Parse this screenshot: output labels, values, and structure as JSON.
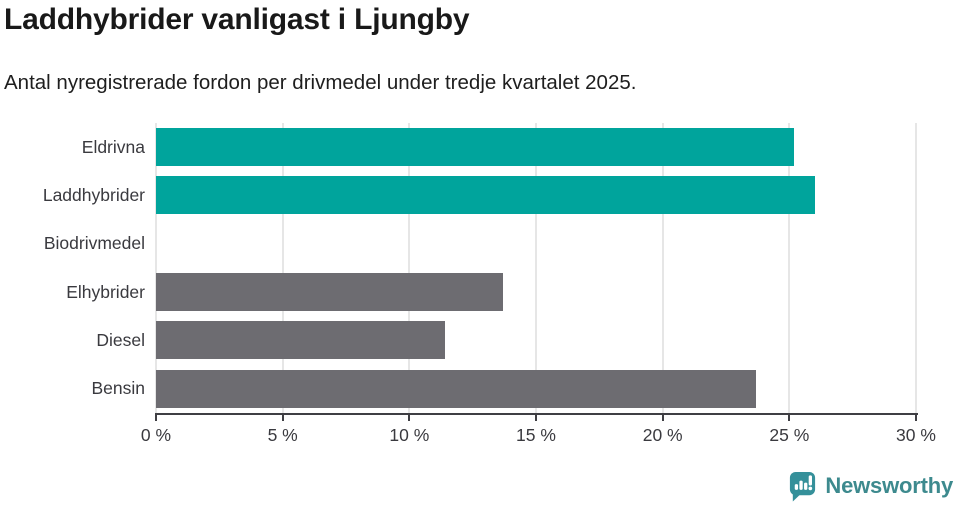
{
  "header": {
    "title": "Laddhybrider vanligast i Ljungby",
    "subtitle": "Antal nyregistrerade fordon per drivmedel under tredje kvartalet 2025."
  },
  "chart_data": {
    "type": "bar",
    "orientation": "horizontal",
    "title": "Laddhybrider vanligast i Ljungby",
    "subtitle": "Antal nyregistrerade fordon per drivmedel under tredje kvartalet 2025.",
    "categories": [
      "Eldrivna",
      "Laddhybrider",
      "Biodrivmedel",
      "Elhybrider",
      "Diesel",
      "Bensin"
    ],
    "values": [
      25.2,
      26.0,
      0,
      13.7,
      11.4,
      23.7
    ],
    "unit": "%",
    "xlabel": "",
    "ylabel": "",
    "xlim": [
      0,
      30
    ],
    "x_ticks": [
      0,
      5,
      10,
      15,
      20,
      25,
      30
    ],
    "x_tick_labels": [
      "0 %",
      "5 %",
      "10 %",
      "15 %",
      "20 %",
      "25 %",
      "30 %"
    ],
    "grid": true,
    "legend_position": "none",
    "bar_colors": [
      "#00a49c",
      "#00a49c",
      "#6d6c71",
      "#6d6c71",
      "#6d6c71",
      "#6d6c71"
    ],
    "highlighted_categories": [
      "Eldrivna",
      "Laddhybrider"
    ]
  },
  "footer": {
    "brand": "Newsworthy"
  },
  "colors": {
    "highlight_bar": "#00a49c",
    "default_bar": "#6d6c71",
    "axis": "#3f3f44",
    "gridline": "#e6e6e6",
    "tick_text": "#3a3a3f",
    "title_text": "#191919",
    "brand_teal": "#3d8a8e",
    "background": "#ffffff"
  }
}
